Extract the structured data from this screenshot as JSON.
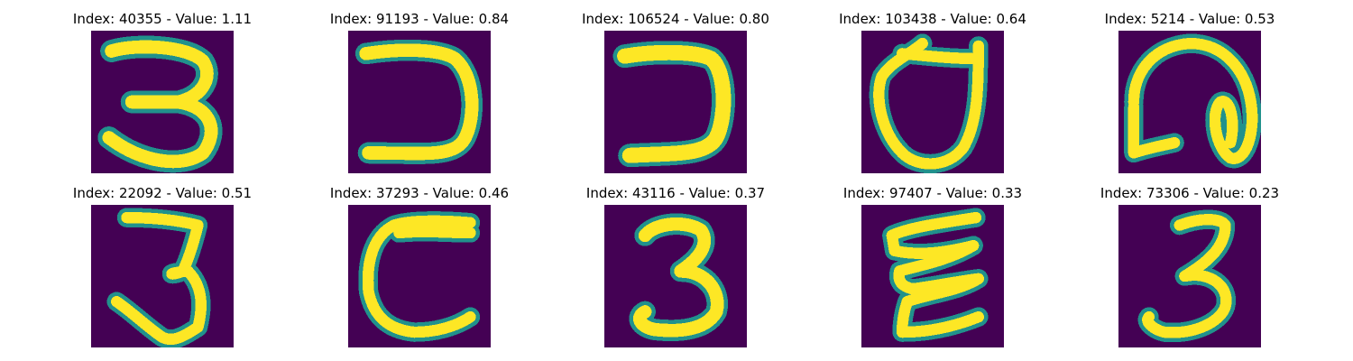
{
  "colors": {
    "background": "#440154",
    "edge": "#21918c",
    "mid": "#5ec962",
    "stroke": "#fde725"
  },
  "panels": [
    {
      "title": "Index: 40355 - Value: 1.11"
    },
    {
      "title": "Index: 91193 - Value: 0.84"
    },
    {
      "title": "Index: 106524 - Value: 0.80"
    },
    {
      "title": "Index: 103438 - Value: 0.64"
    },
    {
      "title": "Index: 5214 - Value: 0.53"
    },
    {
      "title": "Index: 22092 - Value: 0.51"
    },
    {
      "title": "Index: 37293 - Value: 0.46"
    },
    {
      "title": "Index: 43116 - Value: 0.37"
    },
    {
      "title": "Index: 97407 - Value: 0.33"
    },
    {
      "title": "Index: 73306 - Value: 0.23"
    }
  ]
}
